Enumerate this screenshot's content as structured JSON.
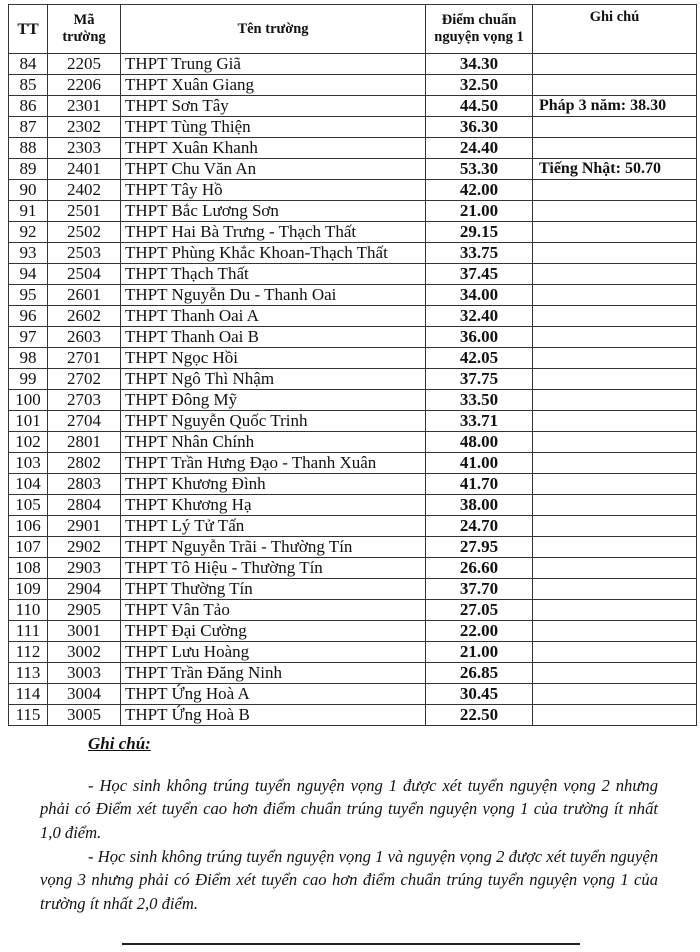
{
  "table": {
    "headers": {
      "tt": "TT",
      "ma_line1": "Mã",
      "ma_line2": "trường",
      "ten": "Tên trường",
      "diem_line1": "Điểm chuẩn",
      "diem_line2": "nguyện vọng 1",
      "ghichu": "Ghi chú"
    },
    "rows": [
      {
        "tt": "84",
        "ma": "2205",
        "ten": "THPT Trung Giã",
        "diem": "34.30",
        "ghichu": ""
      },
      {
        "tt": "85",
        "ma": "2206",
        "ten": "THPT Xuân Giang",
        "diem": "32.50",
        "ghichu": ""
      },
      {
        "tt": "86",
        "ma": "2301",
        "ten": "THPT Sơn Tây",
        "diem": "44.50",
        "ghichu": "Pháp 3 năm: 38.30"
      },
      {
        "tt": "87",
        "ma": "2302",
        "ten": "THPT Tùng Thiện",
        "diem": "36.30",
        "ghichu": ""
      },
      {
        "tt": "88",
        "ma": "2303",
        "ten": "THPT Xuân Khanh",
        "diem": "24.40",
        "ghichu": ""
      },
      {
        "tt": "89",
        "ma": "2401",
        "ten": "THPT Chu Văn An",
        "diem": "53.30",
        "ghichu": "Tiếng Nhật: 50.70"
      },
      {
        "tt": "90",
        "ma": "2402",
        "ten": "THPT Tây Hồ",
        "diem": "42.00",
        "ghichu": ""
      },
      {
        "tt": "91",
        "ma": "2501",
        "ten": "THPT Bắc Lương Sơn",
        "diem": "21.00",
        "ghichu": ""
      },
      {
        "tt": "92",
        "ma": "2502",
        "ten": "THPT Hai Bà Trưng - Thạch Thất",
        "diem": "29.15",
        "ghichu": ""
      },
      {
        "tt": "93",
        "ma": "2503",
        "ten": "THPT Phùng Khắc Khoan-Thạch Thất",
        "diem": "33.75",
        "ghichu": ""
      },
      {
        "tt": "94",
        "ma": "2504",
        "ten": "THPT Thạch Thất",
        "diem": "37.45",
        "ghichu": ""
      },
      {
        "tt": "95",
        "ma": "2601",
        "ten": "THPT Nguyễn Du - Thanh Oai",
        "diem": "34.00",
        "ghichu": ""
      },
      {
        "tt": "96",
        "ma": "2602",
        "ten": "THPT Thanh Oai A",
        "diem": "32.40",
        "ghichu": ""
      },
      {
        "tt": "97",
        "ma": "2603",
        "ten": "THPT Thanh Oai B",
        "diem": "36.00",
        "ghichu": ""
      },
      {
        "tt": "98",
        "ma": "2701",
        "ten": "THPT Ngọc Hồi",
        "diem": "42.05",
        "ghichu": ""
      },
      {
        "tt": "99",
        "ma": "2702",
        "ten": "THPT Ngô Thì Nhậm",
        "diem": "37.75",
        "ghichu": ""
      },
      {
        "tt": "100",
        "ma": "2703",
        "ten": "THPT Đông Mỹ",
        "diem": "33.50",
        "ghichu": ""
      },
      {
        "tt": "101",
        "ma": "2704",
        "ten": "THPT Nguyễn Quốc Trinh",
        "diem": "33.71",
        "ghichu": ""
      },
      {
        "tt": "102",
        "ma": "2801",
        "ten": "THPT Nhân Chính",
        "diem": "48.00",
        "ghichu": ""
      },
      {
        "tt": "103",
        "ma": "2802",
        "ten": "THPT Trần Hưng Đạo - Thanh Xuân",
        "diem": "41.00",
        "ghichu": ""
      },
      {
        "tt": "104",
        "ma": "2803",
        "ten": "THPT Khương Đình",
        "diem": "41.70",
        "ghichu": ""
      },
      {
        "tt": "105",
        "ma": "2804",
        "ten": "THPT Khương Hạ",
        "diem": "38.00",
        "ghichu": ""
      },
      {
        "tt": "106",
        "ma": "2901",
        "ten": "THPT Lý Tử Tấn",
        "diem": "24.70",
        "ghichu": ""
      },
      {
        "tt": "107",
        "ma": "2902",
        "ten": "THPT Nguyễn Trãi - Thường Tín",
        "diem": "27.95",
        "ghichu": ""
      },
      {
        "tt": "108",
        "ma": "2903",
        "ten": "THPT Tô Hiệu - Thường Tín",
        "diem": "26.60",
        "ghichu": ""
      },
      {
        "tt": "109",
        "ma": "2904",
        "ten": "THPT Thường Tín",
        "diem": "37.70",
        "ghichu": ""
      },
      {
        "tt": "110",
        "ma": "2905",
        "ten": "THPT Vân Tảo",
        "diem": "27.05",
        "ghichu": ""
      },
      {
        "tt": "111",
        "ma": "3001",
        "ten": "THPT Đại Cường",
        "diem": "22.00",
        "ghichu": ""
      },
      {
        "tt": "112",
        "ma": "3002",
        "ten": "THPT Lưu Hoàng",
        "diem": "21.00",
        "ghichu": ""
      },
      {
        "tt": "113",
        "ma": "3003",
        "ten": "THPT Trần Đăng Ninh",
        "diem": "26.85",
        "ghichu": ""
      },
      {
        "tt": "114",
        "ma": "3004",
        "ten": "THPT Ứng Hoà A",
        "diem": "30.45",
        "ghichu": ""
      },
      {
        "tt": "115",
        "ma": "3005",
        "ten": "THPT Ứng Hoà B",
        "diem": "22.50",
        "ghichu": ""
      }
    ]
  },
  "notes": {
    "title": "Ghi chú:",
    "paragraphs": [
      "- Học sinh không trúng tuyển nguyện vọng 1 được xét tuyển nguyện vọng 2 nhưng phải có Điểm xét tuyển cao hơn điểm chuẩn trúng tuyển nguyện vọng 1 của trường ít nhất 1,0 điểm.",
      "- Học sinh không trúng tuyển nguyện vọng 1 và nguyện vọng 2 được xét tuyển nguyện vọng 3 nhưng phải có Điểm xét tuyển cao hơn điểm chuẩn trúng tuyển nguyện vọng 1 của trường ít nhất 2,0 điểm."
    ]
  }
}
